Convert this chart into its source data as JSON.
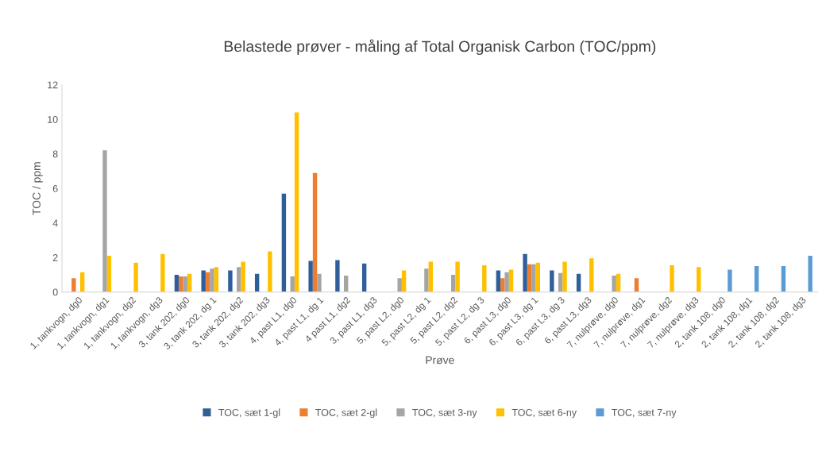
{
  "chart_data": {
    "type": "bar",
    "title": "Belastede prøver - måling af Total Organisk Carbon (TOC/ppm)",
    "xlabel": "Prøve",
    "ylabel": "TOC / ppm",
    "categories": [
      "1, tankvogn, dg0",
      "1, tankvogn, dg1",
      "1, tankvogn, dg2",
      "1, tankvogn, dg3",
      "3, tank 202, dg0",
      "3, tank 202, dg 1",
      "3, tank 202, dg2",
      "3, tank 202, dg3",
      "4, past L1, dg0",
      "4, past L1, dg 1",
      "4 past L1, dg2",
      "3, past L1, dg3",
      "5, past L2, dg0",
      "5, past L2, dg 1",
      "5, past L2, dg2",
      "5, past L2, dg 3",
      "6, past L3, dg0",
      "6, past L3, dg 1",
      "6, past L3, dg 3",
      "6, past L3, dg3",
      "7, nulprøve, dg0",
      "7, nulprøve, dg1",
      "7, nulprøve, dg2",
      "7, nulprøve, dg3",
      "2, tank 108, dg0",
      "2, tank 108, dg1",
      "2, tank 108, dg2",
      "2, tank 108, dg3"
    ],
    "series": [
      {
        "name": "TOC, sæt 1-gl",
        "color": "#2e5f9a",
        "values": [
          null,
          null,
          null,
          null,
          1.0,
          1.25,
          1.25,
          1.05,
          5.7,
          1.8,
          1.85,
          1.65,
          null,
          null,
          null,
          null,
          1.25,
          2.2,
          1.25,
          1.05,
          null,
          null,
          null,
          null,
          null,
          null,
          null,
          null
        ]
      },
      {
        "name": "TOC, sæt 2-gl",
        "color": "#ed7d31",
        "values": [
          0.8,
          null,
          null,
          null,
          0.9,
          1.15,
          null,
          null,
          null,
          6.9,
          null,
          null,
          null,
          null,
          null,
          null,
          0.8,
          1.6,
          null,
          null,
          null,
          0.8,
          null,
          null,
          null,
          null,
          null,
          null
        ]
      },
      {
        "name": "TOC, sæt 3-ny",
        "color": "#a5a5a5",
        "values": [
          null,
          8.2,
          null,
          null,
          0.9,
          1.35,
          1.45,
          null,
          0.9,
          1.05,
          0.95,
          null,
          0.8,
          1.35,
          1.0,
          null,
          1.15,
          1.6,
          1.1,
          null,
          0.95,
          null,
          null,
          null,
          null,
          null,
          null,
          null
        ]
      },
      {
        "name": "TOC, sæt 6-ny",
        "color": "#ffc000",
        "values": [
          1.15,
          2.1,
          1.7,
          2.2,
          1.05,
          1.45,
          1.75,
          2.35,
          10.4,
          null,
          null,
          null,
          1.25,
          1.75,
          1.75,
          1.55,
          1.3,
          1.7,
          1.75,
          1.95,
          1.05,
          null,
          1.55,
          1.45,
          null,
          null,
          null,
          null
        ]
      },
      {
        "name": "TOC, sæt 7-ny",
        "color": "#5b9bd5",
        "values": [
          null,
          null,
          null,
          null,
          null,
          null,
          null,
          null,
          null,
          null,
          null,
          null,
          null,
          null,
          null,
          null,
          null,
          null,
          null,
          null,
          null,
          null,
          null,
          null,
          1.3,
          1.5,
          1.5,
          2.1
        ]
      }
    ],
    "ylim": [
      0,
      12
    ],
    "yticks": [
      0,
      2,
      4,
      6,
      8,
      10,
      12
    ],
    "grid": false,
    "legend": "bottom"
  }
}
